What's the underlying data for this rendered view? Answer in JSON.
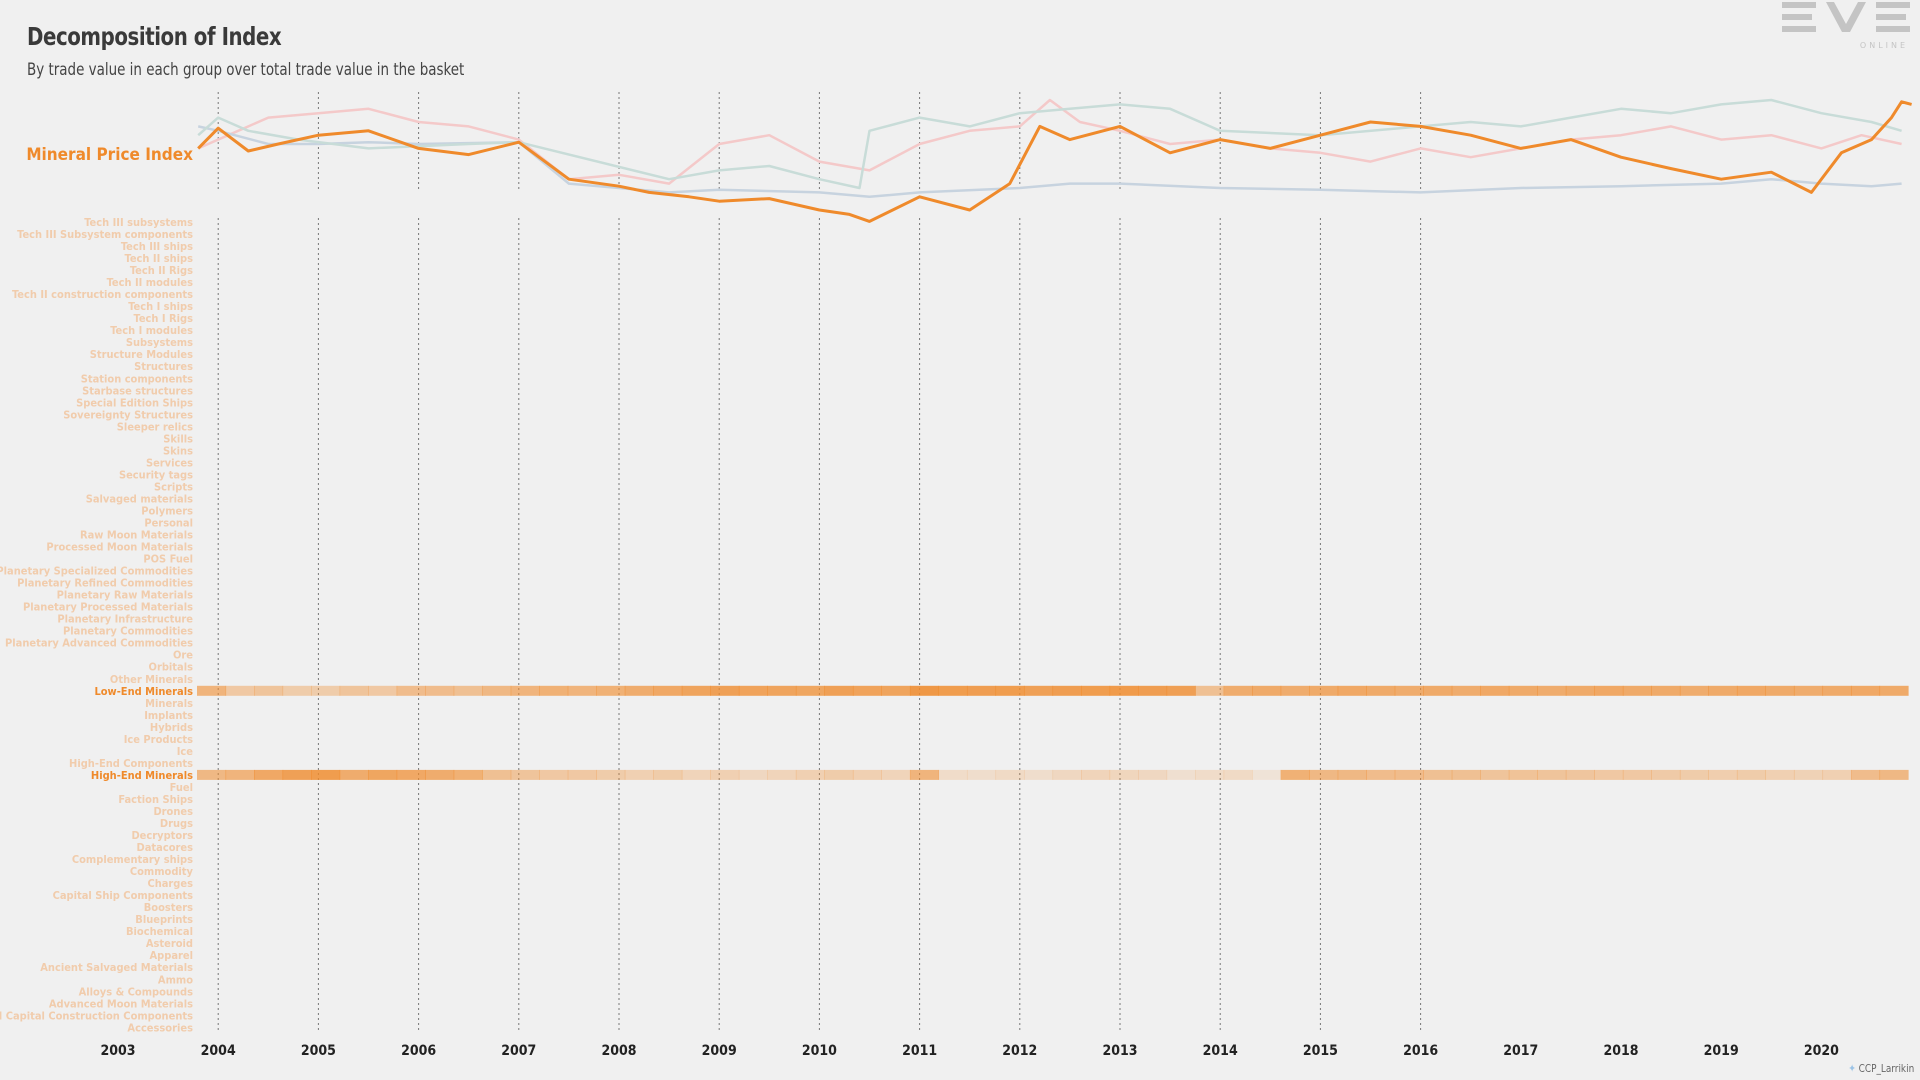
{
  "page": {
    "title": "Decomposition of Index",
    "subtitle": "By trade value in each group over total trade value in the basket",
    "logo": {
      "text": "EVE",
      "subtext": "ONLINE"
    },
    "credit": "CCP_Larrikin",
    "credit_icon": "twitter-bird-icon"
  },
  "chart_data": {
    "type": "line+heatmap",
    "index_label": "Mineral Price Index",
    "x_range": [
      2003,
      2020.9
    ],
    "x_ticks": [
      "2003",
      "2004",
      "2005",
      "2006",
      "2007",
      "2008",
      "2009",
      "2010",
      "2011",
      "2012",
      "2013",
      "2014",
      "2015",
      "2016",
      "2017",
      "2018",
      "2019",
      "2020"
    ],
    "vertical_gridlines_at": [
      "2004",
      "2005",
      "2006",
      "2007",
      "2008",
      "2009",
      "2010",
      "2011",
      "2012",
      "2013",
      "2014",
      "2015",
      "2016"
    ],
    "colors": {
      "highlight": "#ef8a2b",
      "faded_label": "#f1ccac",
      "faded_pink": "#f4c9c9",
      "faded_blue": "#c7d3df",
      "faded_teal": "#c8dcd8",
      "background": "#f0f0f0"
    },
    "index_series": [
      {
        "name": "Mineral Price Index",
        "color": "#ef8a2b",
        "emphasis": true,
        "points": [
          [
            2003.8,
            0.55
          ],
          [
            2004.0,
            0.32
          ],
          [
            2004.3,
            0.58
          ],
          [
            2004.6,
            0.5
          ],
          [
            2005.0,
            0.4
          ],
          [
            2005.5,
            0.35
          ],
          [
            2006.0,
            0.55
          ],
          [
            2006.5,
            0.62
          ],
          [
            2007.0,
            0.48
          ],
          [
            2007.5,
            0.9
          ],
          [
            2008.0,
            0.98
          ],
          [
            2008.3,
            1.05
          ],
          [
            2008.7,
            1.1
          ],
          [
            2009.0,
            1.15
          ],
          [
            2009.5,
            1.12
          ],
          [
            2010.0,
            1.25
          ],
          [
            2010.3,
            1.3
          ],
          [
            2010.5,
            1.38
          ],
          [
            2011.0,
            1.1
          ],
          [
            2011.5,
            1.25
          ],
          [
            2011.9,
            0.95
          ],
          [
            2012.2,
            0.3
          ],
          [
            2012.5,
            0.45
          ],
          [
            2013.0,
            0.3
          ],
          [
            2013.5,
            0.6
          ],
          [
            2014.0,
            0.45
          ],
          [
            2014.5,
            0.55
          ],
          [
            2015.0,
            0.4
          ],
          [
            2015.5,
            0.25
          ],
          [
            2016.0,
            0.3
          ],
          [
            2016.5,
            0.4
          ],
          [
            2017.0,
            0.55
          ],
          [
            2017.5,
            0.45
          ],
          [
            2018.0,
            0.65
          ],
          [
            2018.5,
            0.78
          ],
          [
            2019.0,
            0.9
          ],
          [
            2019.5,
            0.82
          ],
          [
            2019.9,
            1.05
          ],
          [
            2020.2,
            0.6
          ],
          [
            2020.5,
            0.45
          ],
          [
            2020.7,
            0.2
          ],
          [
            2020.8,
            0.02
          ],
          [
            2020.9,
            0.05
          ]
        ]
      },
      {
        "name": "",
        "color": "#f4c9c9",
        "emphasis": false,
        "points": [
          [
            2003.8,
            0.55
          ],
          [
            2004.1,
            0.4
          ],
          [
            2004.5,
            0.2
          ],
          [
            2005.0,
            0.15
          ],
          [
            2005.5,
            0.1
          ],
          [
            2006.0,
            0.25
          ],
          [
            2006.5,
            0.3
          ],
          [
            2007.0,
            0.45
          ],
          [
            2007.5,
            0.9
          ],
          [
            2008.0,
            0.85
          ],
          [
            2008.5,
            0.95
          ],
          [
            2009.0,
            0.5
          ],
          [
            2009.5,
            0.4
          ],
          [
            2010.0,
            0.7
          ],
          [
            2010.5,
            0.8
          ],
          [
            2011.0,
            0.5
          ],
          [
            2011.5,
            0.35
          ],
          [
            2012.0,
            0.3
          ],
          [
            2012.3,
            0.0
          ],
          [
            2012.6,
            0.25
          ],
          [
            2013.0,
            0.35
          ],
          [
            2013.5,
            0.5
          ],
          [
            2014.0,
            0.45
          ],
          [
            2014.5,
            0.55
          ],
          [
            2015.0,
            0.6
          ],
          [
            2015.5,
            0.7
          ],
          [
            2016.0,
            0.55
          ],
          [
            2016.5,
            0.65
          ],
          [
            2017.0,
            0.55
          ],
          [
            2017.5,
            0.45
          ],
          [
            2018.0,
            0.4
          ],
          [
            2018.5,
            0.3
          ],
          [
            2019.0,
            0.45
          ],
          [
            2019.5,
            0.4
          ],
          [
            2020.0,
            0.55
          ],
          [
            2020.4,
            0.4
          ],
          [
            2020.8,
            0.5
          ]
        ]
      },
      {
        "name": "",
        "color": "#c7d3df",
        "emphasis": false,
        "points": [
          [
            2003.8,
            0.3
          ],
          [
            2004.0,
            0.35
          ],
          [
            2004.5,
            0.5
          ],
          [
            2005.0,
            0.5
          ],
          [
            2005.5,
            0.48
          ],
          [
            2006.0,
            0.5
          ],
          [
            2007.0,
            0.48
          ],
          [
            2007.5,
            0.95
          ],
          [
            2008.0,
            1.0
          ],
          [
            2008.5,
            1.05
          ],
          [
            2009.0,
            1.02
          ],
          [
            2010.0,
            1.05
          ],
          [
            2010.5,
            1.1
          ],
          [
            2011.0,
            1.05
          ],
          [
            2012.0,
            1.0
          ],
          [
            2012.5,
            0.95
          ],
          [
            2013.0,
            0.95
          ],
          [
            2014.0,
            1.0
          ],
          [
            2015.0,
            1.02
          ],
          [
            2016.0,
            1.05
          ],
          [
            2017.0,
            1.0
          ],
          [
            2018.0,
            0.98
          ],
          [
            2019.0,
            0.95
          ],
          [
            2019.5,
            0.9
          ],
          [
            2020.0,
            0.95
          ],
          [
            2020.5,
            0.98
          ],
          [
            2020.8,
            0.95
          ]
        ]
      },
      {
        "name": "",
        "color": "#c8dcd8",
        "emphasis": false,
        "points": [
          [
            2003.8,
            0.4
          ],
          [
            2004.0,
            0.2
          ],
          [
            2004.3,
            0.35
          ],
          [
            2004.8,
            0.45
          ],
          [
            2005.5,
            0.55
          ],
          [
            2006.5,
            0.5
          ],
          [
            2007.0,
            0.48
          ],
          [
            2008.5,
            0.9
          ],
          [
            2009.0,
            0.8
          ],
          [
            2009.5,
            0.75
          ],
          [
            2010.0,
            0.9
          ],
          [
            2010.4,
            1.0
          ],
          [
            2010.5,
            0.35
          ],
          [
            2011.0,
            0.2
          ],
          [
            2011.5,
            0.3
          ],
          [
            2012.0,
            0.15
          ],
          [
            2012.5,
            0.1
          ],
          [
            2013.0,
            0.05
          ],
          [
            2013.5,
            0.1
          ],
          [
            2014.0,
            0.35
          ],
          [
            2015.0,
            0.4
          ],
          [
            2016.0,
            0.3
          ],
          [
            2016.5,
            0.25
          ],
          [
            2017.0,
            0.3
          ],
          [
            2017.5,
            0.2
          ],
          [
            2018.0,
            0.1
          ],
          [
            2018.5,
            0.15
          ],
          [
            2019.0,
            0.05
          ],
          [
            2019.5,
            0.0
          ],
          [
            2020.0,
            0.15
          ],
          [
            2020.5,
            0.25
          ],
          [
            2020.8,
            0.35
          ]
        ]
      }
    ],
    "heatmap_rows": [
      {
        "label": "Tech III subsystems",
        "hl": false
      },
      {
        "label": "Tech III Subsystem components",
        "hl": false
      },
      {
        "label": "Tech III ships",
        "hl": false
      },
      {
        "label": "Tech II ships",
        "hl": false
      },
      {
        "label": "Tech II Rigs",
        "hl": false
      },
      {
        "label": "Tech II modules",
        "hl": false
      },
      {
        "label": "Tech II construction components",
        "hl": false
      },
      {
        "label": "Tech I ships",
        "hl": false
      },
      {
        "label": "Tech I Rigs",
        "hl": false
      },
      {
        "label": "Tech I modules",
        "hl": false
      },
      {
        "label": "Subsystems",
        "hl": false
      },
      {
        "label": "Structure Modules",
        "hl": false
      },
      {
        "label": "Structures",
        "hl": false
      },
      {
        "label": "Station components",
        "hl": false
      },
      {
        "label": "Starbase structures",
        "hl": false
      },
      {
        "label": "Special Edition Ships",
        "hl": false
      },
      {
        "label": "Sovereignty Structures",
        "hl": false
      },
      {
        "label": "Sleeper relics",
        "hl": false
      },
      {
        "label": "Skills",
        "hl": false
      },
      {
        "label": "Skins",
        "hl": false
      },
      {
        "label": "Services",
        "hl": false
      },
      {
        "label": "Security tags",
        "hl": false
      },
      {
        "label": "Scripts",
        "hl": false
      },
      {
        "label": "Salvaged materials",
        "hl": false
      },
      {
        "label": "Polymers",
        "hl": false
      },
      {
        "label": "Personal",
        "hl": false
      },
      {
        "label": "Raw Moon Materials",
        "hl": false
      },
      {
        "label": "Processed Moon Materials",
        "hl": false
      },
      {
        "label": "POS Fuel",
        "hl": false
      },
      {
        "label": "Planetary Specialized Commodities",
        "hl": false
      },
      {
        "label": "Planetary Refined Commodities",
        "hl": false
      },
      {
        "label": "Planetary Raw Materials",
        "hl": false
      },
      {
        "label": "Planetary Processed Materials",
        "hl": false
      },
      {
        "label": "Planetary Infrastructure",
        "hl": false
      },
      {
        "label": "Planetary Commodities",
        "hl": false
      },
      {
        "label": "Planetary Advanced Commodities",
        "hl": false
      },
      {
        "label": "Ore",
        "hl": false
      },
      {
        "label": "Orbitals",
        "hl": false
      },
      {
        "label": "Other Minerals",
        "hl": false
      },
      {
        "label": "Low-End Minerals",
        "hl": true,
        "intensity": [
          0.6,
          0.35,
          0.4,
          0.3,
          0.3,
          0.4,
          0.35,
          0.5,
          0.5,
          0.45,
          0.55,
          0.6,
          0.65,
          0.6,
          0.65,
          0.7,
          0.75,
          0.8,
          0.85,
          0.82,
          0.8,
          0.78,
          0.85,
          0.82,
          0.8,
          0.95,
          0.9,
          0.88,
          0.9,
          0.85,
          0.88,
          0.9,
          0.92,
          0.88,
          0.86,
          0.45,
          0.7,
          0.72,
          0.7,
          0.72,
          0.75,
          0.72,
          0.7,
          0.72,
          0.7,
          0.75,
          0.72,
          0.7,
          0.72,
          0.75,
          0.72,
          0.72,
          0.7,
          0.72,
          0.75,
          0.72,
          0.7,
          0.72,
          0.75,
          0.72
        ]
      },
      {
        "label": "Minerals",
        "hl": false
      },
      {
        "label": "Implants",
        "hl": false
      },
      {
        "label": "Hybrids",
        "hl": false
      },
      {
        "label": "Ice Products",
        "hl": false
      },
      {
        "label": "Ice",
        "hl": false
      },
      {
        "label": "High-End Components",
        "hl": false
      },
      {
        "label": "High-End Minerals",
        "hl": true,
        "intensity": [
          0.55,
          0.6,
          0.75,
          0.85,
          0.9,
          0.7,
          0.78,
          0.75,
          0.7,
          0.65,
          0.45,
          0.4,
          0.35,
          0.35,
          0.3,
          0.25,
          0.3,
          0.2,
          0.25,
          0.15,
          0.2,
          0.25,
          0.3,
          0.25,
          0.2,
          0.6,
          0.1,
          0.08,
          0.12,
          0.08,
          0.15,
          0.2,
          0.18,
          0.15,
          0.05,
          0.1,
          0.12,
          0.0,
          0.65,
          0.55,
          0.55,
          0.5,
          0.5,
          0.45,
          0.45,
          0.4,
          0.42,
          0.4,
          0.38,
          0.35,
          0.35,
          0.32,
          0.3,
          0.28,
          0.3,
          0.25,
          0.22,
          0.25,
          0.5,
          0.55
        ]
      },
      {
        "label": "Fuel",
        "hl": false
      },
      {
        "label": "Faction Ships",
        "hl": false
      },
      {
        "label": "Drones",
        "hl": false
      },
      {
        "label": "Drugs",
        "hl": false
      },
      {
        "label": "Decryptors",
        "hl": false
      },
      {
        "label": "Datacores",
        "hl": false
      },
      {
        "label": "Complementary ships",
        "hl": false
      },
      {
        "label": "Commodity",
        "hl": false
      },
      {
        "label": "Charges",
        "hl": false
      },
      {
        "label": "Capital Ship Components",
        "hl": false
      },
      {
        "label": "Boosters",
        "hl": false
      },
      {
        "label": "Blueprints",
        "hl": false
      },
      {
        "label": "Biochemical",
        "hl": false
      },
      {
        "label": "Asteroid",
        "hl": false
      },
      {
        "label": "Apparel",
        "hl": false
      },
      {
        "label": "Ancient Salvaged Materials",
        "hl": false
      },
      {
        "label": "Ammo",
        "hl": false
      },
      {
        "label": "Alloys & Compounds",
        "hl": false
      },
      {
        "label": "Advanced Moon Materials",
        "hl": false
      },
      {
        "label": "Advanced Capital Construction Components",
        "hl": false
      },
      {
        "label": "Accessories",
        "hl": false
      }
    ]
  }
}
